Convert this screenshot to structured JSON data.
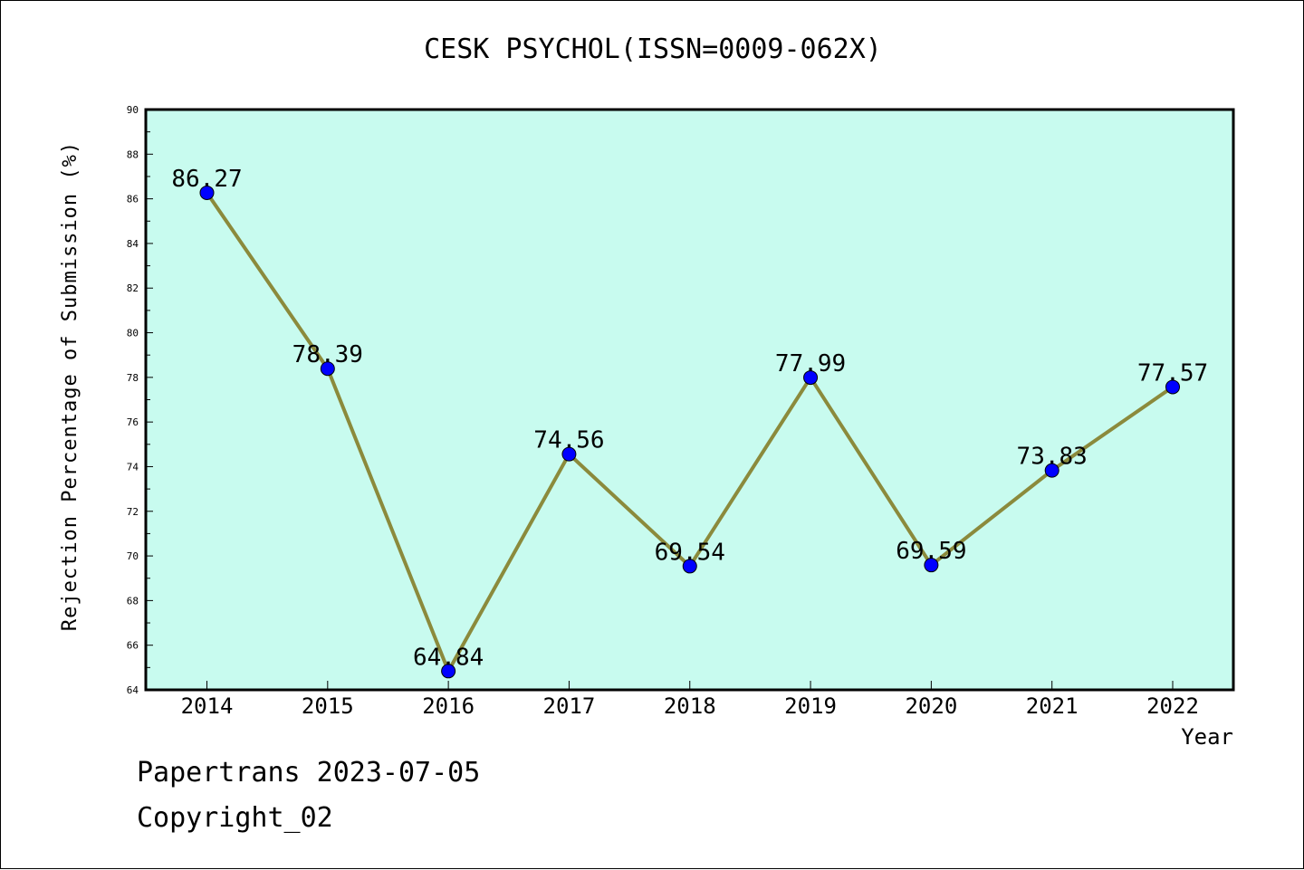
{
  "title": "CESK PSYCHOL(ISSN=0009-062X)",
  "footer": {
    "line1": "Papertrans 2023-07-05",
    "line2": "Copyright_02"
  },
  "colors": {
    "plot_background": "#c8fbef",
    "line": "#8b8a3c",
    "marker": "#0000ff"
  },
  "chart_data": {
    "type": "line",
    "title": "CESK PSYCHOL(ISSN=0009-062X)",
    "xlabel": "Year",
    "ylabel": "Rejection Percentage of Submission (%)",
    "categories": [
      "2014",
      "2015",
      "2016",
      "2017",
      "2018",
      "2019",
      "2020",
      "2021",
      "2022"
    ],
    "series": [
      {
        "values": [
          86.27,
          78.39,
          64.84,
          74.56,
          69.54,
          77.99,
          69.59,
          73.83,
          77.57
        ],
        "labels": [
          "86.27",
          "78.39",
          "64.84",
          "74.56",
          "69.54",
          "77.99",
          "69.59",
          "73.83",
          "77.57"
        ]
      }
    ],
    "ylim": [
      64,
      90
    ],
    "yticks": [
      "64",
      "66",
      "68",
      "70",
      "72",
      "74",
      "76",
      "78",
      "80",
      "82",
      "84",
      "86",
      "88",
      "90"
    ],
    "grid": false,
    "legend": "none"
  }
}
